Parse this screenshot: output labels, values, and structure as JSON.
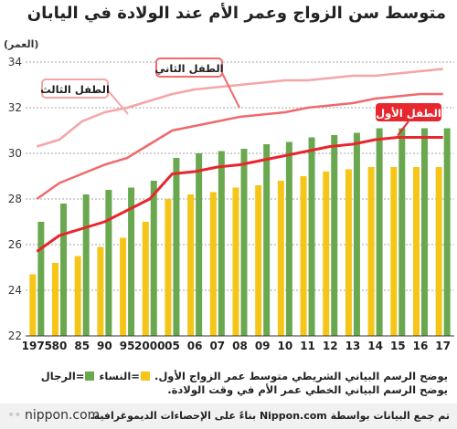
{
  "title": "متوسط سن الزواج وعمر الأم عند الولادة في اليابان",
  "chart_data": {
    "type": "bar",
    "unit_label": "(العمر)",
    "categories": [
      "1975",
      "80",
      "85",
      "90",
      "95",
      "2000",
      "05",
      "06",
      "07",
      "08",
      "09",
      "10",
      "11",
      "12",
      "13",
      "14",
      "15",
      "16",
      "17"
    ],
    "ylim": [
      22,
      34
    ],
    "yticks": [
      22,
      24,
      26,
      28,
      30,
      32,
      34
    ],
    "grid": true,
    "series": [
      {
        "name": "الرجال",
        "kind": "bar",
        "color": "#6aa84f",
        "values": [
          27.0,
          27.8,
          28.2,
          28.4,
          28.5,
          28.8,
          29.8,
          30.0,
          30.1,
          30.2,
          30.4,
          30.5,
          30.7,
          30.8,
          30.9,
          31.1,
          31.1,
          31.1,
          31.1
        ]
      },
      {
        "name": "النساء",
        "kind": "bar",
        "color": "#f5c518",
        "values": [
          24.7,
          25.2,
          25.5,
          25.9,
          26.3,
          27.0,
          28.0,
          28.2,
          28.3,
          28.5,
          28.6,
          28.8,
          29.0,
          29.2,
          29.3,
          29.4,
          29.4,
          29.4,
          29.4
        ]
      },
      {
        "name": "الطفل الأول",
        "kind": "line",
        "color": "#e8262d",
        "values": [
          25.7,
          26.4,
          26.7,
          27.0,
          27.5,
          28.0,
          29.1,
          29.2,
          29.4,
          29.5,
          29.7,
          29.9,
          30.1,
          30.3,
          30.4,
          30.6,
          30.7,
          30.7,
          30.7
        ]
      },
      {
        "name": "الطفل الثاني",
        "kind": "line",
        "color": "#f0696d",
        "values": [
          28.0,
          28.7,
          29.1,
          29.5,
          29.8,
          30.4,
          31.0,
          31.2,
          31.4,
          31.6,
          31.7,
          31.8,
          32.0,
          32.1,
          32.2,
          32.4,
          32.5,
          32.6,
          32.6
        ]
      },
      {
        "name": "الطفل الثالث",
        "kind": "line",
        "color": "#f6a5a6",
        "values": [
          30.3,
          30.6,
          31.4,
          31.8,
          32.0,
          32.3,
          32.6,
          32.8,
          32.9,
          33.0,
          33.1,
          33.2,
          33.2,
          33.3,
          33.4,
          33.4,
          33.5,
          33.6,
          33.7
        ]
      }
    ],
    "annotations": {
      "first": "الطفل الأول",
      "second": "الطفل الثاني",
      "third": "الطفل الثالث"
    }
  },
  "legend": {
    "men": "=الرجال",
    "women": "=النساء",
    "line1_text": "يوضح الرسم البياني الشريطي متوسط عمر الزواج الأول.",
    "line2_text": "يوضح الرسم البياني الخطي عمر الأم في وقت الولادة."
  },
  "footer": {
    "source": "تم جمع البيانات بواسطة Nippon.com بناءً على الإحصاءات الديموغرافية.",
    "logo_dots": "••",
    "logo_text": "nippon.com"
  }
}
